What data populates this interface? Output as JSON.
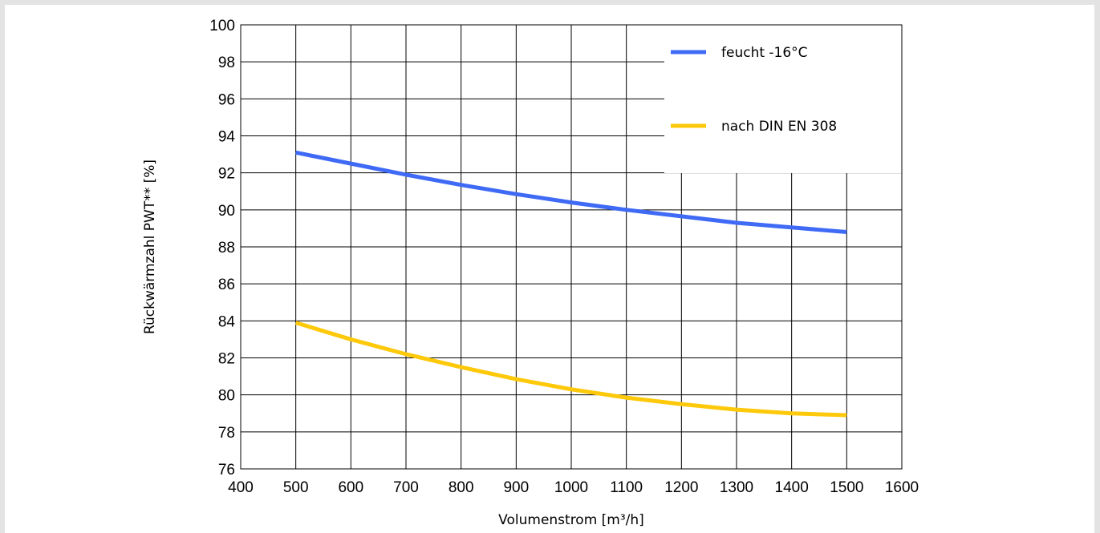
{
  "colors": {
    "page_background": "#e3e3e3",
    "plot_background": "#ffffff",
    "grid": "#000000",
    "series_feucht": "#3f6af5",
    "series_din": "#fdc90a"
  },
  "chart_data": {
    "type": "line",
    "xlabel": "Volumenstrom [m³/h]",
    "ylabel": "Rückwärmzahl PWT** [%]",
    "xlim": [
      400,
      1600
    ],
    "ylim": [
      76,
      100
    ],
    "xticks": [
      400,
      500,
      600,
      700,
      800,
      900,
      1000,
      1100,
      1200,
      1300,
      1400,
      1500,
      1600
    ],
    "yticks": [
      76,
      78,
      80,
      82,
      84,
      86,
      88,
      90,
      92,
      94,
      96,
      98,
      100
    ],
    "grid": true,
    "legend_position": "top-right",
    "series": [
      {
        "name": "feucht -16°C",
        "color": "#3f6af5",
        "x": [
          500,
          600,
          700,
          800,
          900,
          1000,
          1100,
          1200,
          1300,
          1400,
          1500
        ],
        "y": [
          93.1,
          92.5,
          91.9,
          91.35,
          90.85,
          90.4,
          90.0,
          89.65,
          89.3,
          89.05,
          88.8
        ]
      },
      {
        "name": "nach DIN EN 308",
        "color": "#fdc90a",
        "x": [
          500,
          600,
          700,
          800,
          900,
          1000,
          1100,
          1200,
          1300,
          1400,
          1500
        ],
        "y": [
          83.9,
          83.0,
          82.2,
          81.5,
          80.85,
          80.3,
          79.85,
          79.5,
          79.2,
          79.0,
          78.9
        ]
      }
    ]
  }
}
